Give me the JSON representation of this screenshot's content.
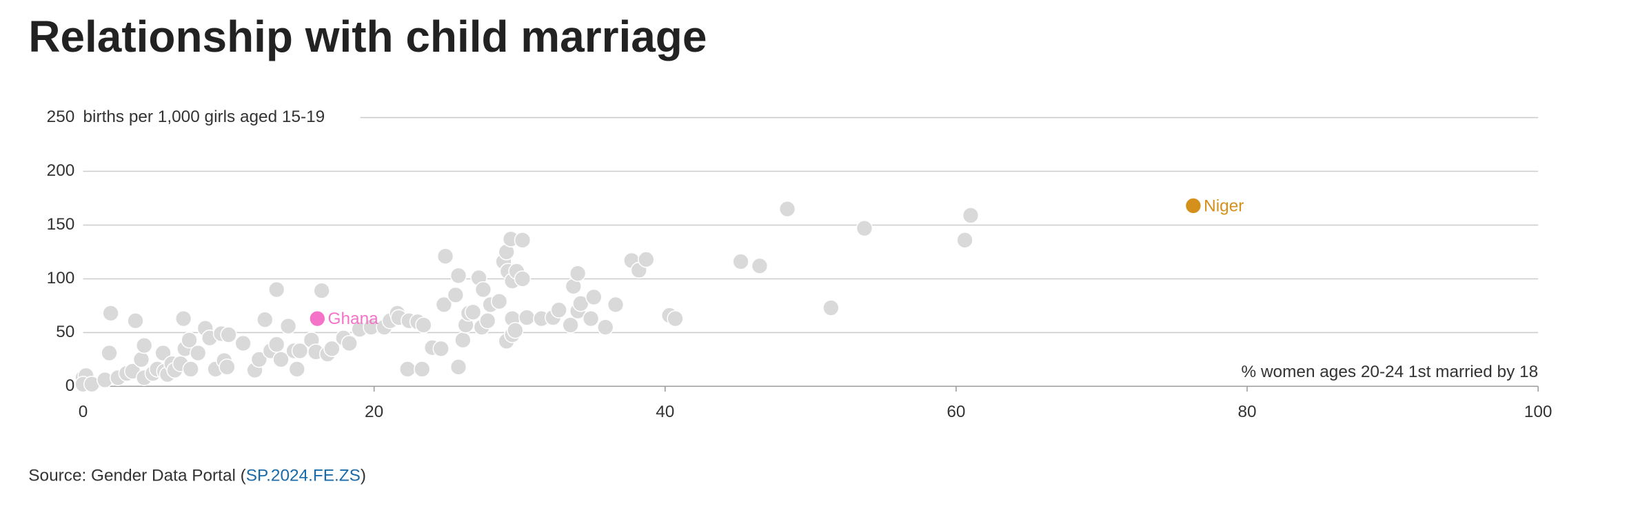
{
  "chart_data": {
    "type": "scatter",
    "title": "Relationship with child marriage",
    "y_label": "births per 1,000 girls aged 15-19",
    "x_label": "% women ages 20-24 1st married by 18",
    "source_prefix": "Source: Gender Data Portal (",
    "source_link": "SP.2024.FE.ZS",
    "source_suffix": ")",
    "xlim": [
      0,
      100
    ],
    "xticks": [
      0,
      20,
      40,
      60,
      80,
      100
    ],
    "ylim": [
      0,
      250
    ],
    "yticks": [
      0,
      50,
      100,
      150,
      200,
      250
    ],
    "grid": true,
    "series": [
      {
        "color": "#d9d9d9",
        "x": [
          0,
          0.2,
          0,
          0.6,
          1.5,
          1.8,
          1.9,
          2.4,
          3,
          3.4,
          3.6,
          4,
          4.2,
          4.2,
          4.8,
          5.1,
          5.5,
          5.6,
          5.8,
          6.1,
          6.3,
          6.7,
          6.9,
          7,
          7.3,
          7.4,
          7.9,
          8.4,
          8.7,
          9.1,
          9.5,
          9.7,
          9.9,
          10,
          11,
          11.8,
          12.1,
          12.5,
          12.9,
          13.3,
          13.3,
          13.6,
          14.1,
          14.5,
          14.7,
          14.9,
          15.7,
          16,
          16.4,
          16.8,
          17.1,
          17.9,
          18.3,
          19,
          19.8,
          20.7,
          21.1,
          21.6,
          21.7,
          22.3,
          22.4,
          23,
          23.3,
          23.4,
          24,
          24.6,
          24.8,
          24.9,
          25.8,
          25.6,
          25.8,
          26.1,
          26.3,
          26.5,
          26.8,
          27.2,
          27.4,
          27.5,
          27.8,
          28,
          28.6,
          28.9,
          29.1,
          29.1,
          29.2,
          29.4,
          29.5,
          29.5,
          29.5,
          29.7,
          29.8,
          30.2,
          30.2,
          30.5,
          31.5,
          32.3,
          32.7,
          33.5,
          33.7,
          34,
          34,
          34.2,
          34.9,
          35.1,
          35.9,
          36.6,
          37.7,
          38.2,
          38.7,
          40.3,
          40.7,
          45.2,
          46.5,
          48.4,
          51.4,
          53.7,
          60.6,
          61
        ],
        "values": [
          8,
          10,
          2,
          2,
          6,
          31,
          68,
          8,
          12,
          14,
          61,
          25,
          38,
          8,
          12,
          16,
          31,
          14,
          11,
          21,
          15,
          21,
          63,
          35,
          43,
          16,
          31,
          54,
          45,
          16,
          49,
          24,
          18,
          48,
          40,
          15,
          25,
          62,
          33,
          90,
          39,
          25,
          56,
          33,
          16,
          33,
          43,
          32,
          89,
          30,
          35,
          45,
          40,
          53,
          55,
          55,
          61,
          68,
          64,
          16,
          61,
          60,
          16,
          57,
          36,
          35,
          76,
          121,
          18,
          85,
          103,
          43,
          57,
          68,
          69,
          101,
          55,
          90,
          61,
          76,
          79,
          116,
          125,
          42,
          107,
          137,
          48,
          63,
          98,
          52,
          107,
          136,
          100,
          64,
          63,
          64,
          71,
          57,
          93,
          105,
          70,
          77,
          63,
          83,
          55,
          76,
          117,
          108,
          118,
          66,
          63,
          116,
          112,
          165,
          73,
          147,
          136,
          159
        ]
      },
      {
        "name": "Ghana",
        "color": "#f472c8",
        "x": [
          16.1
        ],
        "values": [
          63
        ]
      },
      {
        "name": "Niger",
        "color": "#d4901a",
        "x": [
          76.3
        ],
        "values": [
          168
        ]
      }
    ]
  }
}
